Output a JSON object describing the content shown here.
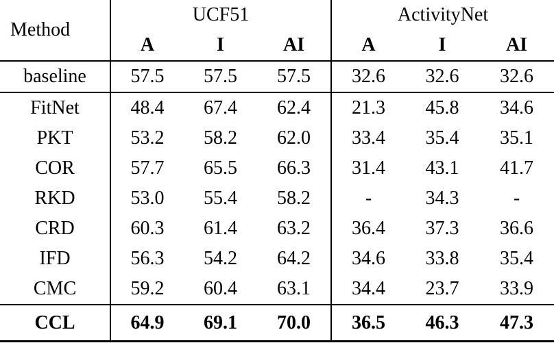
{
  "table": {
    "header": {
      "method_label": "Method",
      "group1": "UCF51",
      "group2": "ActivityNet",
      "subheaders": [
        "A",
        "I",
        "AI",
        "A",
        "I",
        "AI"
      ]
    },
    "rows": [
      {
        "method": "baseline",
        "values": [
          "57.5",
          "57.5",
          "57.5",
          "32.6",
          "32.6",
          "32.6"
        ],
        "bold": false,
        "rule_below": true
      },
      {
        "method": "FitNet",
        "values": [
          "48.4",
          "67.4",
          "62.4",
          "21.3",
          "45.8",
          "34.6"
        ],
        "bold": false,
        "rule_below": false
      },
      {
        "method": "PKT",
        "values": [
          "53.2",
          "58.2",
          "62.0",
          "33.4",
          "35.4",
          "35.1"
        ],
        "bold": false,
        "rule_below": false
      },
      {
        "method": "COR",
        "values": [
          "57.7",
          "65.5",
          "66.3",
          "31.4",
          "43.1",
          "41.7"
        ],
        "bold": false,
        "rule_below": false
      },
      {
        "method": "RKD",
        "values": [
          "53.0",
          "55.4",
          "58.2",
          "-",
          "34.3",
          "-"
        ],
        "bold": false,
        "rule_below": false
      },
      {
        "method": "CRD",
        "values": [
          "60.3",
          "61.4",
          "63.2",
          "36.4",
          "37.3",
          "36.6"
        ],
        "bold": false,
        "rule_below": false
      },
      {
        "method": "IFD",
        "values": [
          "56.3",
          "54.2",
          "64.2",
          "34.6",
          "33.8",
          "35.4"
        ],
        "bold": false,
        "rule_below": false
      },
      {
        "method": "CMC",
        "values": [
          "59.2",
          "60.4",
          "63.1",
          "34.4",
          "23.7",
          "33.9"
        ],
        "bold": false,
        "rule_below": true
      },
      {
        "method": "CCL",
        "values": [
          "64.9",
          "69.1",
          "70.0",
          "36.5",
          "46.3",
          "47.3"
        ],
        "bold": true,
        "rule_below": false
      }
    ],
    "colors": {
      "text": "#000000",
      "background": "#ffffff",
      "rule": "#000000"
    }
  },
  "chart_data": {
    "type": "table",
    "title": "",
    "column_groups": [
      "Method",
      "UCF51",
      "ActivityNet"
    ],
    "columns": [
      "Method",
      "UCF51 A",
      "UCF51 I",
      "UCF51 AI",
      "ActivityNet A",
      "ActivityNet I",
      "ActivityNet AI"
    ],
    "rows": [
      [
        "baseline",
        57.5,
        57.5,
        57.5,
        32.6,
        32.6,
        32.6
      ],
      [
        "FitNet",
        48.4,
        67.4,
        62.4,
        21.3,
        45.8,
        34.6
      ],
      [
        "PKT",
        53.2,
        58.2,
        62.0,
        33.4,
        35.4,
        35.1
      ],
      [
        "COR",
        57.7,
        65.5,
        66.3,
        31.4,
        43.1,
        41.7
      ],
      [
        "RKD",
        53.0,
        55.4,
        58.2,
        null,
        34.3,
        null
      ],
      [
        "CRD",
        60.3,
        61.4,
        63.2,
        36.4,
        37.3,
        36.6
      ],
      [
        "IFD",
        56.3,
        54.2,
        64.2,
        34.6,
        33.8,
        35.4
      ],
      [
        "CMC",
        59.2,
        60.4,
        63.1,
        34.4,
        23.7,
        33.9
      ],
      [
        "CCL",
        64.9,
        69.1,
        70.0,
        36.5,
        46.3,
        47.3
      ]
    ],
    "notes": "CCL row is bold (best results); '-' denotes missing value"
  }
}
